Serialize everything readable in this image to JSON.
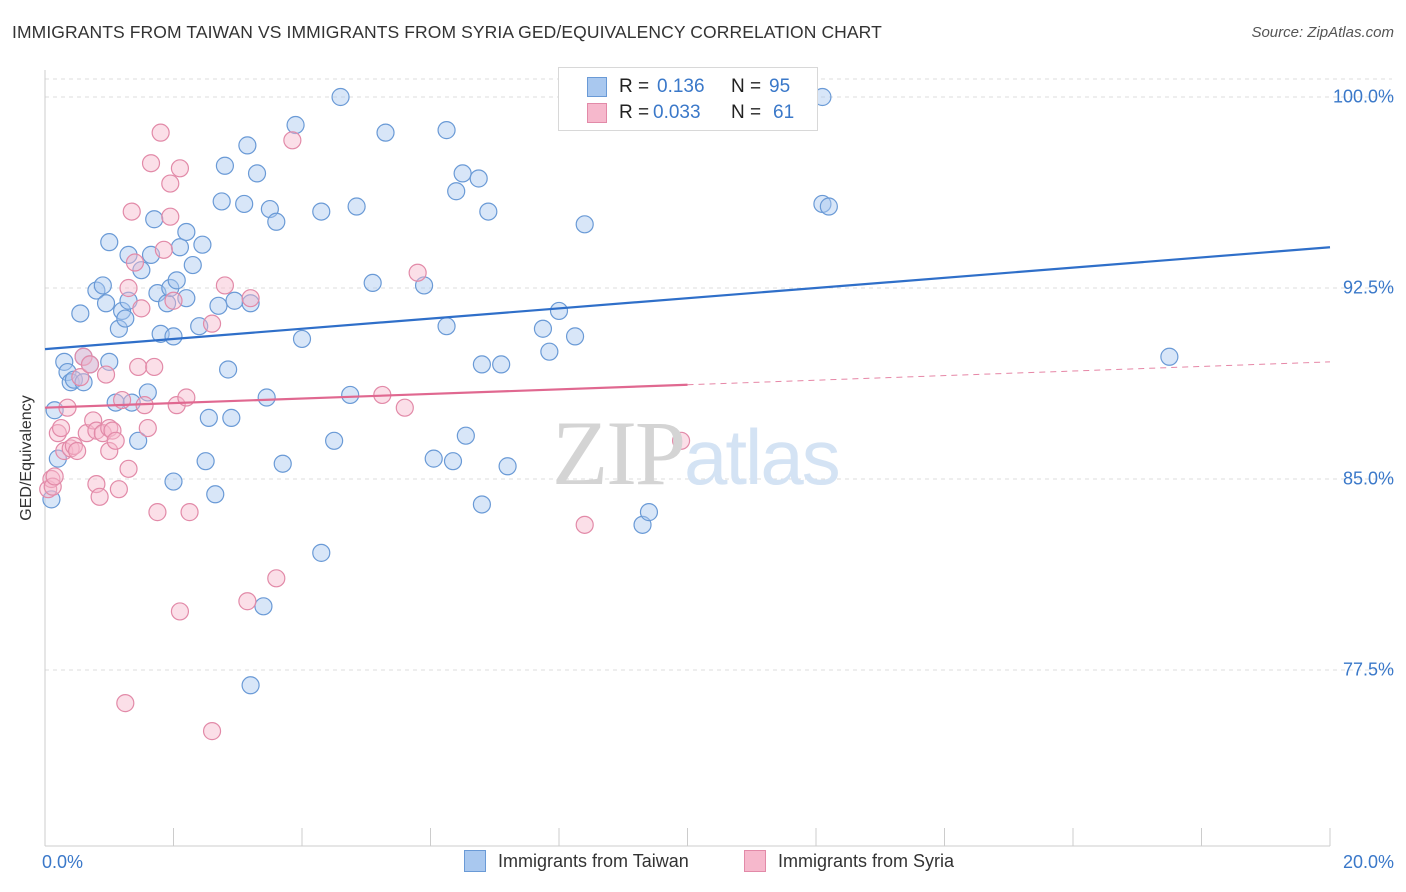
{
  "title": "IMMIGRANTS FROM TAIWAN VS IMMIGRANTS FROM SYRIA GED/EQUIVALENCY CORRELATION CHART",
  "source": "Source: ZipAtlas.com",
  "watermark": {
    "zip": "ZIP",
    "atlas": "atlas"
  },
  "colors": {
    "taiwan_fill": "#a9c8ef",
    "taiwan_stroke": "#6a9ad6",
    "taiwan_line": "#2f6fc9",
    "syria_fill": "#f6b8cc",
    "syria_stroke": "#e28aa8",
    "syria_line": "#e06890",
    "tick_text": "#3a78c9",
    "grid": "#dddddd"
  },
  "stats": {
    "r_label": "R =",
    "n_label": "N =",
    "rows": [
      {
        "r": "0.136",
        "n": "95"
      },
      {
        "r": "0.033",
        "n": "61"
      }
    ]
  },
  "chart_data": {
    "type": "scatter",
    "title": "IMMIGRANTS FROM TAIWAN VS IMMIGRANTS FROM SYRIA GED/EQUIVALENCY CORRELATION CHART",
    "xlabel": "",
    "ylabel": "GED/Equivalency",
    "xlim": [
      0,
      20
    ],
    "ylim": [
      70,
      101.2
    ],
    "x_tick_labels": [
      "0.0%",
      "20.0%"
    ],
    "y_ticks": [
      77.5,
      85.0,
      92.5,
      100.0
    ],
    "y_tick_labels": [
      "77.5%",
      "85.0%",
      "92.5%",
      "100.0%"
    ],
    "grid": true,
    "legend_position": "bottom-center",
    "series": [
      {
        "name": "Immigrants from Taiwan",
        "r": 0.136,
        "n": 95,
        "trend": {
          "x": [
            0,
            20
          ],
          "y": [
            90.1,
            94.1
          ],
          "style": "solid"
        },
        "points": [
          [
            0.1,
            84.2
          ],
          [
            0.15,
            87.7
          ],
          [
            0.2,
            85.8
          ],
          [
            0.3,
            89.6
          ],
          [
            0.35,
            89.2
          ],
          [
            0.4,
            88.8
          ],
          [
            0.45,
            88.9
          ],
          [
            0.55,
            91.5
          ],
          [
            0.6,
            89.8
          ],
          [
            0.7,
            89.5
          ],
          [
            0.8,
            92.4
          ],
          [
            0.9,
            92.6
          ],
          [
            0.95,
            91.9
          ],
          [
            1.0,
            94.3
          ],
          [
            1.1,
            88.0
          ],
          [
            1.15,
            90.9
          ],
          [
            1.2,
            91.6
          ],
          [
            1.25,
            91.3
          ],
          [
            1.3,
            93.8
          ],
          [
            1.35,
            88.0
          ],
          [
            1.45,
            86.5
          ],
          [
            1.5,
            93.2
          ],
          [
            1.6,
            88.4
          ],
          [
            1.65,
            93.8
          ],
          [
            1.7,
            95.2
          ],
          [
            1.75,
            92.3
          ],
          [
            1.8,
            90.7
          ],
          [
            1.9,
            91.9
          ],
          [
            1.95,
            92.5
          ],
          [
            2.0,
            90.6
          ],
          [
            2.05,
            92.8
          ],
          [
            2.1,
            94.1
          ],
          [
            2.2,
            94.7
          ],
          [
            2.3,
            93.4
          ],
          [
            2.4,
            91.0
          ],
          [
            2.45,
            94.2
          ],
          [
            2.5,
            85.7
          ],
          [
            2.55,
            87.4
          ],
          [
            2.65,
            84.4
          ],
          [
            2.7,
            91.8
          ],
          [
            2.75,
            95.9
          ],
          [
            2.8,
            97.3
          ],
          [
            2.85,
            89.3
          ],
          [
            2.9,
            87.4
          ],
          [
            3.1,
            95.8
          ],
          [
            3.15,
            98.1
          ],
          [
            3.2,
            91.9
          ],
          [
            3.3,
            97.0
          ],
          [
            3.4,
            80.0
          ],
          [
            3.45,
            88.2
          ],
          [
            3.5,
            95.6
          ],
          [
            3.6,
            95.1
          ],
          [
            3.7,
            85.6
          ],
          [
            3.9,
            98.9
          ],
          [
            4.0,
            90.5
          ],
          [
            4.3,
            95.5
          ],
          [
            4.5,
            86.5
          ],
          [
            4.6,
            100.0
          ],
          [
            4.75,
            88.3
          ],
          [
            4.85,
            95.7
          ],
          [
            5.1,
            92.7
          ],
          [
            5.3,
            98.6
          ],
          [
            5.9,
            92.6
          ],
          [
            6.05,
            85.8
          ],
          [
            6.25,
            91.0
          ],
          [
            6.25,
            98.7
          ],
          [
            6.35,
            85.7
          ],
          [
            6.4,
            96.3
          ],
          [
            6.5,
            97.0
          ],
          [
            6.55,
            86.7
          ],
          [
            6.75,
            96.8
          ],
          [
            6.8,
            84.0
          ],
          [
            6.8,
            89.5
          ],
          [
            6.9,
            95.5
          ],
          [
            7.1,
            89.5
          ],
          [
            7.2,
            85.5
          ],
          [
            7.75,
            90.9
          ],
          [
            7.85,
            90.0
          ],
          [
            8.0,
            91.6
          ],
          [
            8.25,
            90.6
          ],
          [
            8.4,
            95.0
          ],
          [
            9.3,
            83.2
          ],
          [
            9.4,
            83.7
          ],
          [
            12.1,
            100.0
          ],
          [
            12.1,
            95.8
          ],
          [
            12.2,
            95.7
          ],
          [
            17.5,
            89.8
          ],
          [
            2.0,
            84.9
          ],
          [
            1.0,
            89.6
          ],
          [
            0.6,
            88.8
          ],
          [
            1.3,
            92.0
          ],
          [
            2.2,
            92.1
          ],
          [
            3.2,
            76.9
          ],
          [
            4.3,
            82.1
          ],
          [
            2.95,
            92.0
          ]
        ]
      },
      {
        "name": "Immigrants from Syria",
        "r": 0.033,
        "n": 61,
        "trend": {
          "x": [
            0,
            10
          ],
          "y": [
            87.8,
            88.7
          ],
          "dashed_to": [
            20,
            89.6
          ],
          "style": "solid-then-dashed"
        },
        "points": [
          [
            0.05,
            84.6
          ],
          [
            0.1,
            85.0
          ],
          [
            0.12,
            84.7
          ],
          [
            0.15,
            85.1
          ],
          [
            0.2,
            86.8
          ],
          [
            0.25,
            87.0
          ],
          [
            0.3,
            86.1
          ],
          [
            0.35,
            87.8
          ],
          [
            0.4,
            86.2
          ],
          [
            0.45,
            86.3
          ],
          [
            0.5,
            86.1
          ],
          [
            0.55,
            89.0
          ],
          [
            0.6,
            89.8
          ],
          [
            0.65,
            86.8
          ],
          [
            0.7,
            89.5
          ],
          [
            0.75,
            87.3
          ],
          [
            0.8,
            86.9
          ],
          [
            0.8,
            84.8
          ],
          [
            0.85,
            84.3
          ],
          [
            0.9,
            86.8
          ],
          [
            0.95,
            89.1
          ],
          [
            1.0,
            87.0
          ],
          [
            1.0,
            86.1
          ],
          [
            1.05,
            86.9
          ],
          [
            1.1,
            86.5
          ],
          [
            1.15,
            84.6
          ],
          [
            1.2,
            88.1
          ],
          [
            1.3,
            92.5
          ],
          [
            1.3,
            85.4
          ],
          [
            1.35,
            95.5
          ],
          [
            1.4,
            93.5
          ],
          [
            1.45,
            89.4
          ],
          [
            1.5,
            91.7
          ],
          [
            1.55,
            87.9
          ],
          [
            1.6,
            87.0
          ],
          [
            1.65,
            97.4
          ],
          [
            1.7,
            89.4
          ],
          [
            1.75,
            83.7
          ],
          [
            1.8,
            98.6
          ],
          [
            1.85,
            94.0
          ],
          [
            1.95,
            96.6
          ],
          [
            1.95,
            95.3
          ],
          [
            2.0,
            92.0
          ],
          [
            2.05,
            87.9
          ],
          [
            2.1,
            97.2
          ],
          [
            2.2,
            88.2
          ],
          [
            2.25,
            83.7
          ],
          [
            2.6,
            91.1
          ],
          [
            2.8,
            92.6
          ],
          [
            3.15,
            80.2
          ],
          [
            3.2,
            92.1
          ],
          [
            3.6,
            81.1
          ],
          [
            3.85,
            98.3
          ],
          [
            5.25,
            88.3
          ],
          [
            5.6,
            87.8
          ],
          [
            5.8,
            93.1
          ],
          [
            8.4,
            83.2
          ],
          [
            9.9,
            86.5
          ],
          [
            1.25,
            76.2
          ],
          [
            2.1,
            79.8
          ],
          [
            2.6,
            75.1
          ]
        ]
      }
    ]
  },
  "legend": {
    "items": [
      "Immigrants from Taiwan",
      "Immigrants from Syria"
    ]
  }
}
